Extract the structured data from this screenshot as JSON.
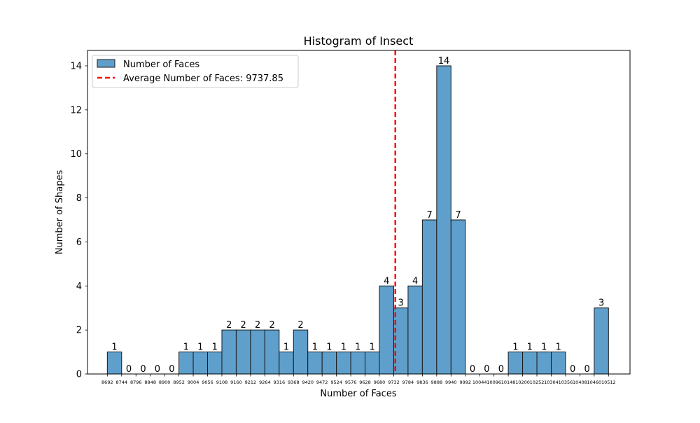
{
  "chart_data": {
    "type": "bar",
    "title": "Histogram of Insect",
    "xlabel": "Number of Faces",
    "ylabel": "Number of Shapes",
    "bin_edges": [
      8692,
      8744,
      8796,
      8848,
      8900,
      8952,
      9004,
      9056,
      9108,
      9160,
      9212,
      9264,
      9316,
      9368,
      9420,
      9472,
      9524,
      9576,
      9628,
      9680,
      9732,
      9784,
      9836,
      9888,
      9940,
      9992,
      10044,
      10096,
      10148,
      10200,
      10252,
      10304,
      10356,
      10408,
      10460,
      10512
    ],
    "x_tick_labels": [
      "8692",
      "8744",
      "8796",
      "8848",
      "8900",
      "8952",
      "9004",
      "9056",
      "9108",
      "9160",
      "9212",
      "9264",
      "9316",
      "9368",
      "9420",
      "9472",
      "9524",
      "9576",
      "9628",
      "9680",
      "9732",
      "9784",
      "9836",
      "9888",
      "9940",
      "9992",
      "10044",
      "10096",
      "10148",
      "10200",
      "10252",
      "10304",
      "10356",
      "10408",
      "10460",
      "10512"
    ],
    "values": [
      1,
      0,
      0,
      0,
      0,
      1,
      1,
      1,
      2,
      2,
      2,
      2,
      1,
      2,
      1,
      1,
      1,
      1,
      1,
      4,
      3,
      4,
      7,
      14,
      7,
      0,
      0,
      0,
      1,
      1,
      1,
      1,
      0,
      0,
      3
    ],
    "xlim": [
      8620,
      10590
    ],
    "ylim": [
      0,
      14.7
    ],
    "y_ticks": [
      0,
      2,
      4,
      6,
      8,
      10,
      12,
      14
    ],
    "average_line": {
      "value": 9737.85,
      "color": "#ff0000",
      "style": "dashed"
    },
    "legend": {
      "position": "upper left",
      "entries": [
        {
          "label": "Number of Faces",
          "color": "#5f9fcb"
        },
        {
          "label": "Average Number of Faces: 9737.85",
          "color": "#ff0000"
        }
      ]
    },
    "bar_color": "#5f9fcb",
    "bar_edge_color": "#1a1a1a",
    "grid": false
  }
}
